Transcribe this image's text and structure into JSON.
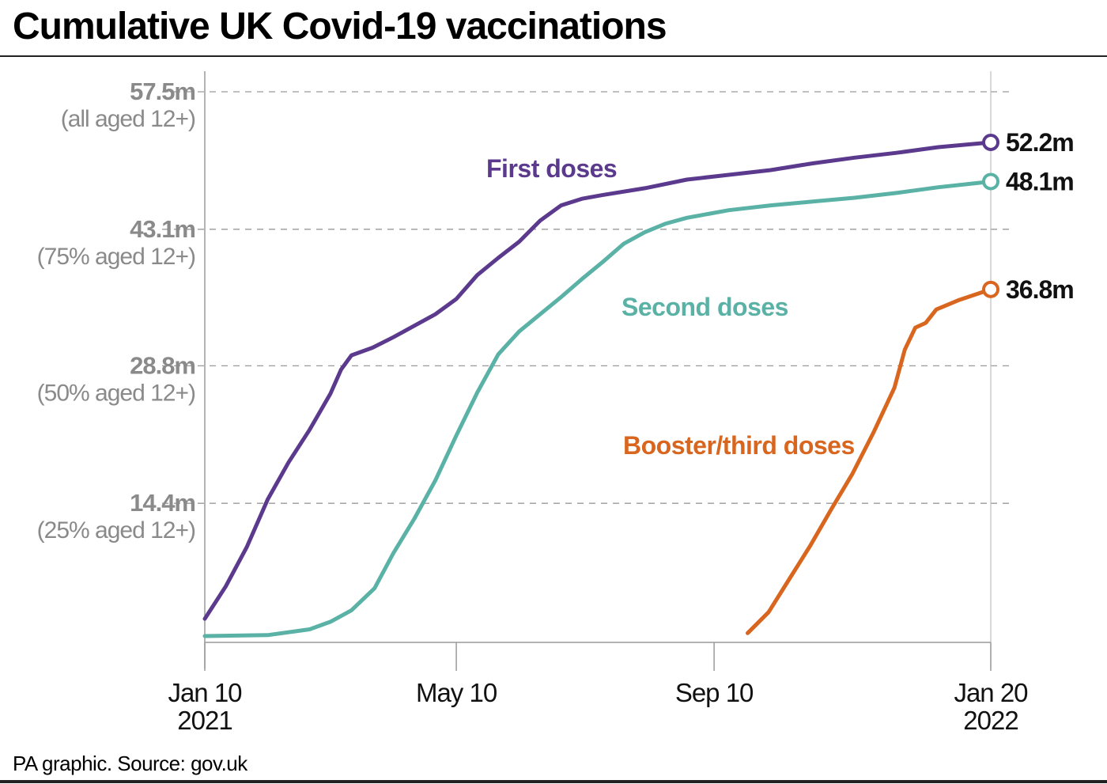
{
  "title": "Cumulative UK Covid-19 vaccinations",
  "source": "PA graphic. Source: gov.uk",
  "colors": {
    "first": "#5b3a8e",
    "second": "#5ab1a5",
    "booster": "#d9661f",
    "axis_label": "#8a8a8a",
    "grid": "#9a9a9a"
  },
  "chart_data": {
    "type": "line",
    "title": "Cumulative UK Covid-19 vaccinations",
    "xlabel": "",
    "ylabel": "",
    "units": "millions of doses",
    "xlim": [
      "2021-01-10",
      "2022-01-20"
    ],
    "ylim": [
      0,
      57.5
    ],
    "grid": "horizontal dashed",
    "y_ticks": [
      {
        "value": 14.4,
        "label": "14.4m",
        "sublabel": "(25% aged 12+)"
      },
      {
        "value": 28.8,
        "label": "28.8m",
        "sublabel": "(50% aged 12+)"
      },
      {
        "value": 43.1,
        "label": "43.1m",
        "sublabel": "(75% aged 12+)"
      },
      {
        "value": 57.5,
        "label": "57.5m",
        "sublabel": "(all aged 12+)"
      }
    ],
    "x_ticks": [
      {
        "date": "2021-01-10",
        "label": "Jan 10",
        "sublabel": "2021"
      },
      {
        "date": "2021-05-10",
        "label": "May 10",
        "sublabel": ""
      },
      {
        "date": "2021-09-10",
        "label": "Sep 10",
        "sublabel": ""
      },
      {
        "date": "2022-01-20",
        "label": "Jan 20",
        "sublabel": "2022"
      }
    ],
    "series": [
      {
        "name": "First doses",
        "key": "first",
        "end_label": "52.2m",
        "x": [
          "2021-01-10",
          "2021-01-20",
          "2021-01-30",
          "2021-02-09",
          "2021-02-19",
          "2021-03-01",
          "2021-03-11",
          "2021-03-16",
          "2021-03-21",
          "2021-03-31",
          "2021-04-10",
          "2021-04-20",
          "2021-04-30",
          "2021-05-10",
          "2021-05-20",
          "2021-05-30",
          "2021-06-09",
          "2021-06-19",
          "2021-06-29",
          "2021-07-09",
          "2021-07-19",
          "2021-08-08",
          "2021-08-28",
          "2021-09-17",
          "2021-10-07",
          "2021-10-27",
          "2021-11-16",
          "2021-12-06",
          "2021-12-26",
          "2022-01-20"
        ],
        "y": [
          2.3,
          5.7,
          9.8,
          14.8,
          18.7,
          22.1,
          25.9,
          28.4,
          29.9,
          30.7,
          31.8,
          33.0,
          34.2,
          35.8,
          38.3,
          40.1,
          41.8,
          44.0,
          45.6,
          46.3,
          46.7,
          47.4,
          48.3,
          48.8,
          49.3,
          50.0,
          50.6,
          51.1,
          51.7,
          52.2
        ]
      },
      {
        "name": "Second doses",
        "key": "second",
        "end_label": "48.1m",
        "x": [
          "2021-01-10",
          "2021-02-09",
          "2021-03-01",
          "2021-03-11",
          "2021-03-21",
          "2021-04-01",
          "2021-04-10",
          "2021-04-20",
          "2021-04-30",
          "2021-05-10",
          "2021-05-20",
          "2021-05-30",
          "2021-06-09",
          "2021-06-19",
          "2021-06-29",
          "2021-07-09",
          "2021-07-19",
          "2021-07-29",
          "2021-08-08",
          "2021-08-18",
          "2021-08-28",
          "2021-09-07",
          "2021-09-17",
          "2021-10-07",
          "2021-10-27",
          "2021-11-16",
          "2021-12-06",
          "2021-12-26",
          "2022-01-20"
        ],
        "y": [
          0.5,
          0.6,
          1.2,
          2.0,
          3.2,
          5.5,
          9.2,
          12.8,
          16.8,
          21.5,
          26.0,
          30.0,
          32.4,
          34.2,
          36.0,
          37.9,
          39.7,
          41.6,
          42.8,
          43.7,
          44.3,
          44.7,
          45.1,
          45.6,
          46.0,
          46.4,
          46.9,
          47.5,
          48.1
        ]
      },
      {
        "name": "Booster/third doses",
        "key": "booster",
        "end_label": "36.8m",
        "x": [
          "2021-09-26",
          "2021-10-06",
          "2021-10-16",
          "2021-10-26",
          "2021-11-05",
          "2021-11-15",
          "2021-11-25",
          "2021-12-05",
          "2021-12-10",
          "2021-12-15",
          "2021-12-20",
          "2021-12-25",
          "2022-01-05",
          "2022-01-20"
        ],
        "y": [
          0.8,
          3.0,
          6.5,
          10.0,
          13.8,
          17.5,
          21.8,
          26.5,
          30.5,
          32.8,
          33.3,
          34.7,
          35.7,
          36.8
        ]
      }
    ]
  }
}
